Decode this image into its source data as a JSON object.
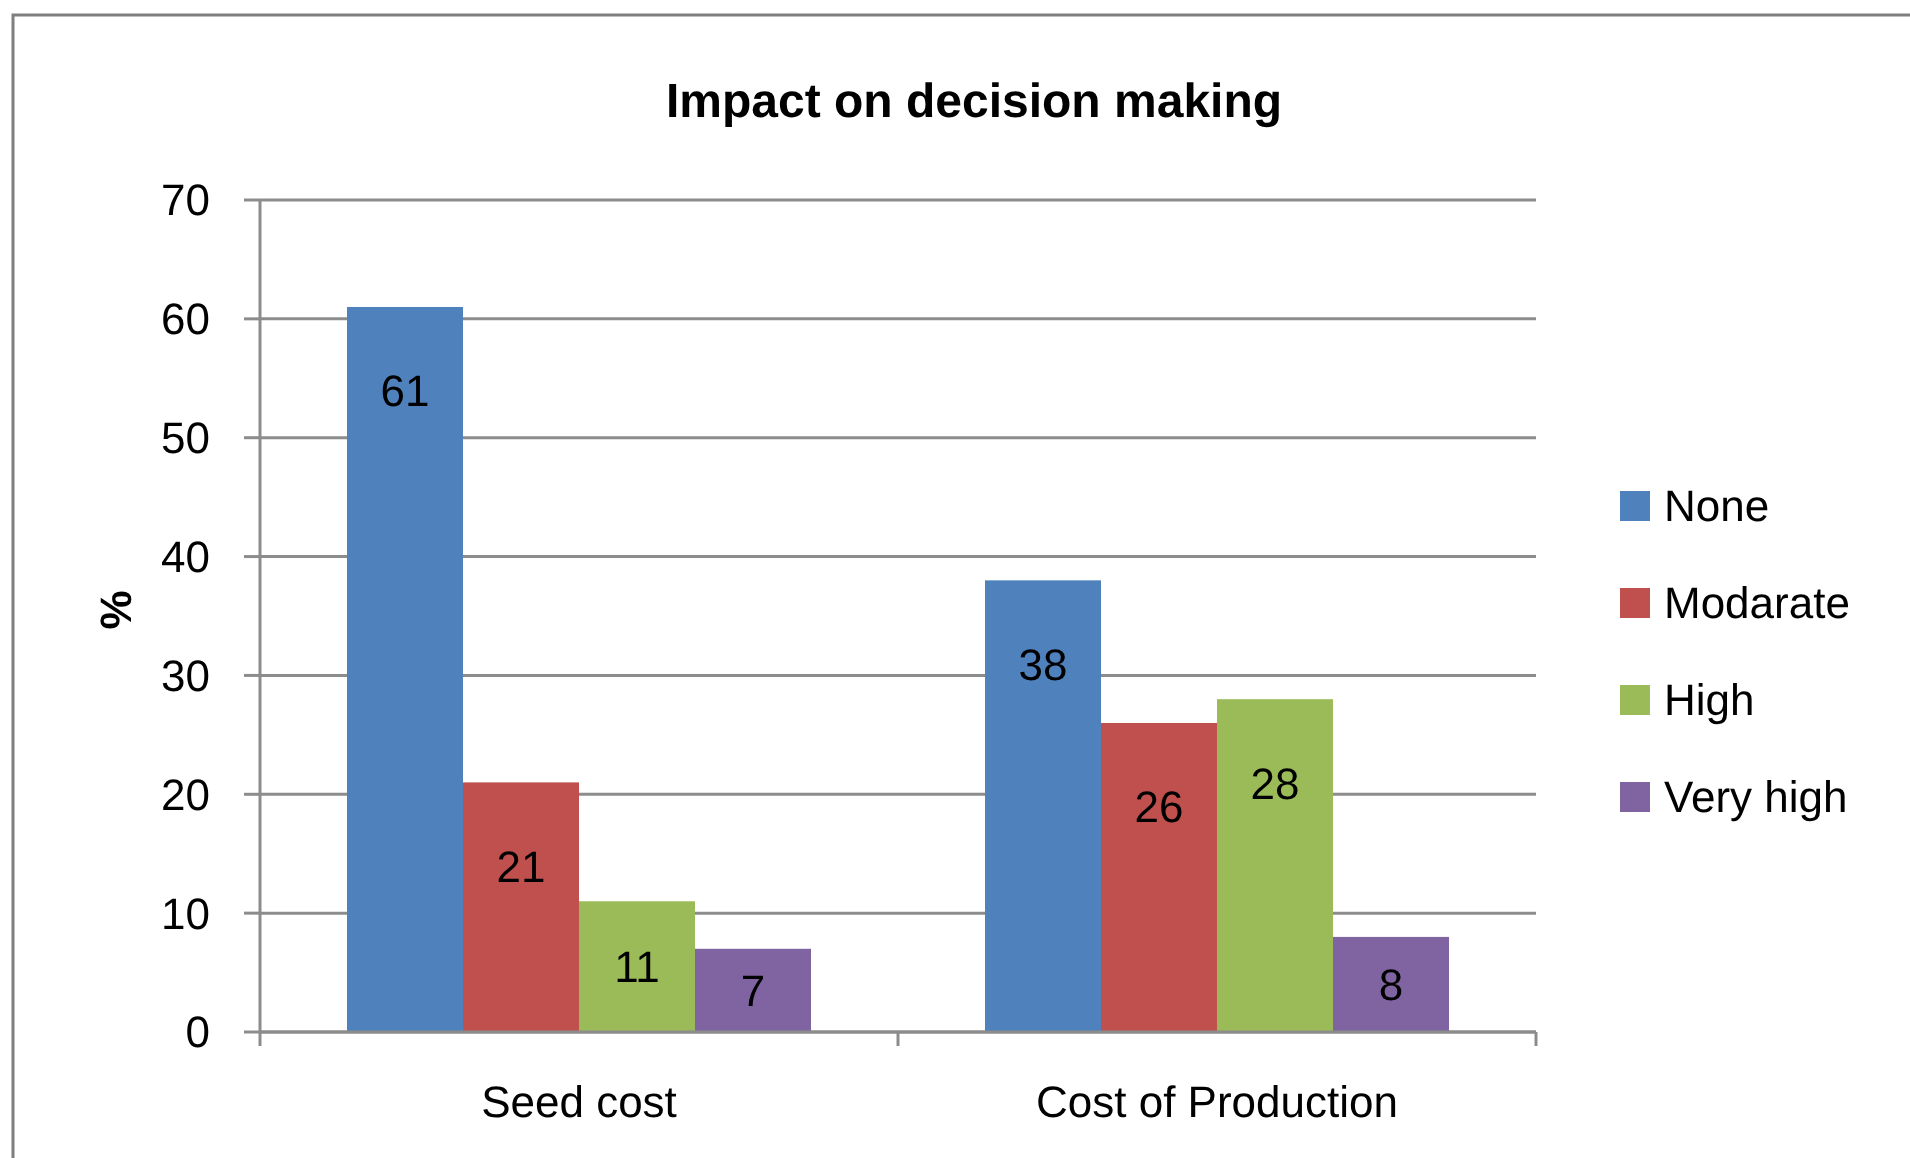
{
  "chart_data": {
    "type": "bar",
    "title": "Impact on decision making",
    "ylabel": "%",
    "categories": [
      "Seed cost",
      "Cost of Production"
    ],
    "series": [
      {
        "name": "None",
        "color": "#4f81bd",
        "values": [
          61,
          38
        ]
      },
      {
        "name": "Modarate",
        "color": "#c0504d",
        "values": [
          21,
          26
        ]
      },
      {
        "name": "High",
        "color": "#9bbb59",
        "values": [
          11,
          28
        ]
      },
      {
        "name": "Very high",
        "color": "#8064a2",
        "values": [
          7,
          8
        ]
      }
    ],
    "ylim": [
      0,
      70
    ],
    "yticks": [
      0,
      10,
      20,
      30,
      40,
      50,
      60,
      70
    ],
    "grid": "y",
    "legend": "right",
    "data_labels": true
  }
}
